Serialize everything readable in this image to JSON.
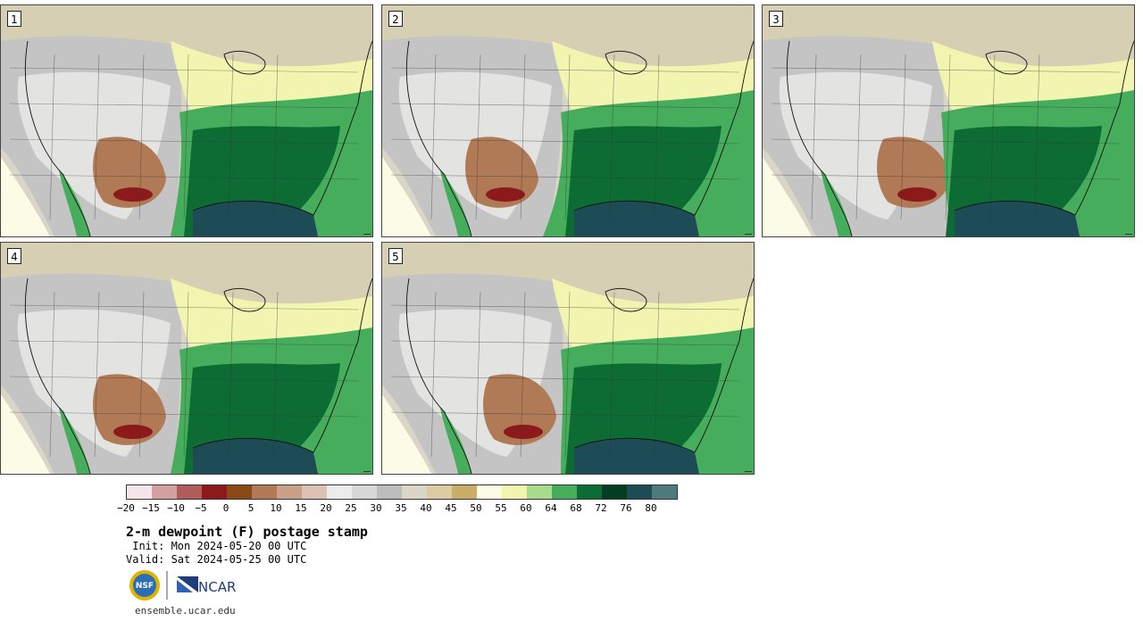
{
  "members": [
    "1",
    "2",
    "3",
    "4",
    "5"
  ],
  "colorbar": {
    "colors": [
      "#f4e6e6",
      "#d3a0a0",
      "#b05c5c",
      "#8c1a1a",
      "#8a4a18",
      "#b07a56",
      "#c9a18a",
      "#dcc2b2",
      "#ececea",
      "#d7d7d7",
      "#bcbcbc",
      "#d9d6c8",
      "#dccba0",
      "#c9ad6b",
      "#fbfbe6",
      "#f2f5b0",
      "#a6dc8c",
      "#45ad5b",
      "#0d6c34",
      "#023d24",
      "#1e4c56",
      "#4e7a7c"
    ],
    "ticks": [
      "−20",
      "−15",
      "−10",
      "−5",
      "0",
      "5",
      "10",
      "15",
      "20",
      "25",
      "30",
      "35",
      "40",
      "45",
      "50",
      "55",
      "60",
      "64",
      "68",
      "72",
      "76",
      "80"
    ]
  },
  "title": "2-m dewpoint (F) postage stamp",
  "init": " Init: Mon 2024-05-20 00 UTC",
  "valid": "Valid: Sat 2024-05-25 00 UTC",
  "logos": {
    "nsf": "NSF",
    "ncar": "NCAR"
  },
  "site": "ensemble.ucar.edu"
}
